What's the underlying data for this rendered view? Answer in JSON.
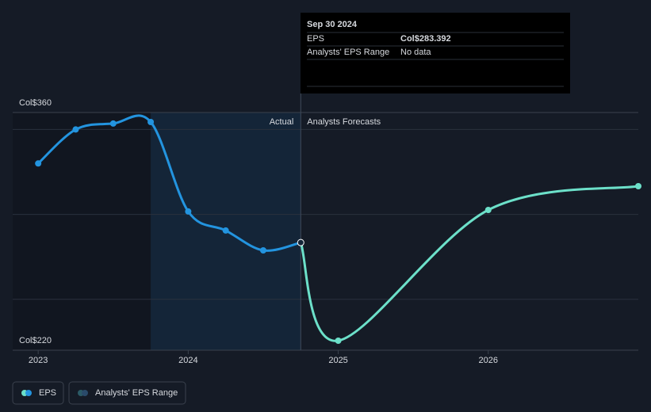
{
  "chart_data": {
    "type": "line",
    "xlim": [
      2022.83,
      2027
    ],
    "xticks": [
      2023,
      2024,
      2025,
      2026
    ],
    "ylim": [
      220,
      360
    ],
    "yticks": [
      {
        "value": 220,
        "label": "Col$220"
      },
      {
        "value": 360,
        "label": "Col$360"
      }
    ],
    "grid_values": [
      250,
      300,
      350
    ],
    "grid": true,
    "highlight_range": [
      2023.75,
      2024.75
    ],
    "series": [
      {
        "name": "Actual",
        "color": "#2394df",
        "x": [
          2023,
          2023.25,
          2023.5,
          2023.75,
          2024,
          2024.25,
          2024.5,
          2024.75
        ],
        "values": [
          330,
          350,
          353.5,
          354.4,
          301.7,
          290.5,
          278.8,
          283.392
        ]
      },
      {
        "name": "Analysts Forecasts",
        "color": "#6ce0c9",
        "x": [
          2024.75,
          2025,
          2026,
          2027
        ],
        "values": [
          283.392,
          225.6,
          302.6,
          316.6
        ]
      }
    ],
    "tooltip": {
      "date": "Sep 30 2024",
      "rows": [
        {
          "label": "EPS",
          "value": "Col$283.392"
        },
        {
          "label": "Analysts' EPS Range",
          "value": "No data"
        }
      ]
    },
    "legend": [
      "EPS",
      "Analysts' EPS Range"
    ]
  }
}
